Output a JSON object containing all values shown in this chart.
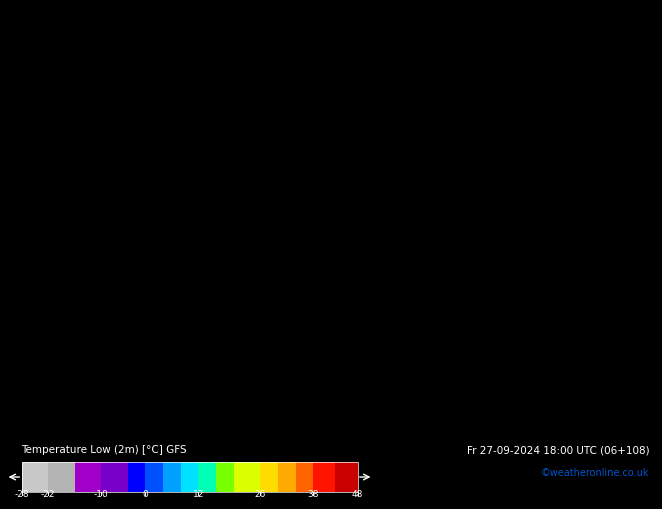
{
  "title_left": "Temperature Low (2m) [°C] GFS",
  "title_right": "Fr 27-09-2024 18:00 UTC (06+108)",
  "credit": "©weatheronline.co.uk",
  "colorbar_ticks": [
    -28,
    -22,
    -10,
    0,
    12,
    26,
    38,
    48
  ],
  "colorbar_colors": [
    "#c8c8c8",
    "#b4b4b4",
    "#a000c8",
    "#7800c8",
    "#0000ff",
    "#0050ff",
    "#00a0ff",
    "#00e0ff",
    "#00ffb4",
    "#78ff00",
    "#dcff00",
    "#ffdc00",
    "#ffaa00",
    "#ff6400",
    "#ff1400",
    "#c80000"
  ],
  "colorbar_boundaries": [
    -28,
    -22,
    -16,
    -10,
    -4,
    0,
    4,
    8,
    12,
    16,
    20,
    26,
    30,
    34,
    38,
    43,
    48
  ],
  "map_background": "#c8dc00",
  "label_fontsize": 8,
  "credit_color": "#0055cc",
  "fig_width": 6.34,
  "fig_height": 4.9
}
